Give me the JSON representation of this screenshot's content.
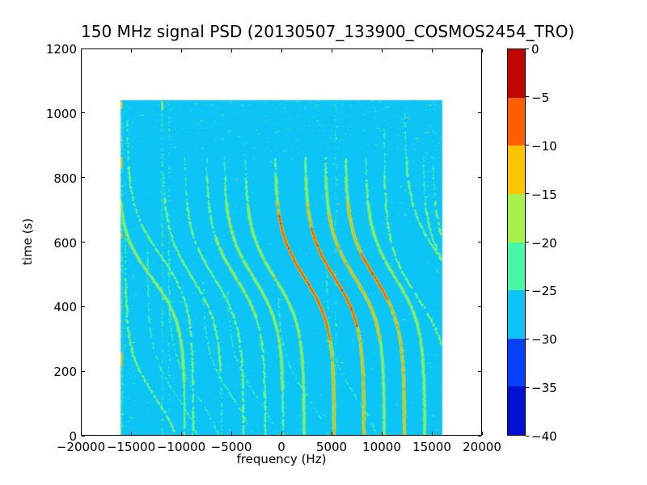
{
  "chart_data": {
    "type": "heatmap",
    "title": "150 MHz signal PSD (20130507_133900_COSMOS2454_TRO)",
    "xlabel": "frequency (Hz)",
    "ylabel": "time (s)",
    "xlim": [
      -20000,
      20000
    ],
    "ylim": [
      0,
      1200
    ],
    "x_ticks": [
      -20000,
      -15000,
      -10000,
      -5000,
      0,
      5000,
      10000,
      15000,
      20000
    ],
    "x_tick_labels": [
      "−20000",
      "−15000",
      "−10000",
      "−5000",
      "0",
      "5000",
      "10000",
      "15000",
      "20000"
    ],
    "y_ticks": [
      0,
      200,
      400,
      600,
      800,
      1000,
      1200
    ],
    "y_tick_labels": [
      "0",
      "200",
      "400",
      "600",
      "800",
      "1000",
      "1200"
    ],
    "grid": false,
    "legend": "none",
    "colorbar": {
      "ticks": [
        0,
        -5,
        -10,
        -15,
        -20,
        -25,
        -30,
        -35,
        -40
      ],
      "tick_labels": [
        "0",
        "−5",
        "−10",
        "−15",
        "−20",
        "−25",
        "−30",
        "−35",
        "−40"
      ],
      "segment_colors_top_to_bottom": [
        "#c00400",
        "#ff5f00",
        "#ffc400",
        "#a8f14d",
        "#49f7a4",
        "#0cc4f5",
        "#0540fb",
        "#0410cf"
      ]
    },
    "background_level_color": "#0cc4f5",
    "data_extent": {
      "freq_min": -16040,
      "freq_max": 16040,
      "time_min": 0,
      "time_max": 1040
    },
    "palette": {
      "red": "#cc0f00",
      "orange": "#ff5f00",
      "gold": "#ffc400",
      "green_yellow": "#a8f14d",
      "aqua": "#49f7a4",
      "dim_cyan": "#2bb8e8"
    },
    "doppler_traces": [
      {
        "f_mid": -8900,
        "t_infl": 490,
        "tau": 150,
        "swing": 2950,
        "strength": 0.42,
        "t_max": 880
      },
      {
        "f_mid": -6727,
        "t_infl": 490,
        "tau": 150,
        "swing": 2950,
        "strength": 0.5,
        "t_max": 862
      },
      {
        "f_mid": -4550,
        "t_infl": 490,
        "tau": 150,
        "swing": 2950,
        "strength": 0.55,
        "t_max": 862
      },
      {
        "f_mid": -2776,
        "t_infl": 490,
        "tau": 150,
        "swing": 2950,
        "strength": 0.62,
        "t_max": 862
      },
      {
        "f_mid": -679,
        "t_infl": 490,
        "tau": 150,
        "swing": 2950,
        "strength": 0.72,
        "t_max": 862
      },
      {
        "f_mid": 2305,
        "t_infl": 490,
        "tau": 150,
        "swing": 2950,
        "strength": 1.0,
        "t_max": 862
      },
      {
        "f_mid": 5289,
        "t_infl": 490,
        "tau": 150,
        "swing": 2950,
        "strength": 0.97,
        "t_max": 862
      },
      {
        "f_mid": 7305,
        "t_infl": 490,
        "tau": 150,
        "swing": 2950,
        "strength": 0.8,
        "t_max": 862
      },
      {
        "f_mid": 9321,
        "t_infl": 490,
        "tau": 150,
        "swing": 2950,
        "strength": 0.92,
        "t_max": 862
      },
      {
        "f_mid": 11337,
        "t_infl": 490,
        "tau": 150,
        "swing": 2950,
        "strength": 0.7,
        "t_max": 862
      },
      {
        "f_mid": 17063,
        "t_infl": 490,
        "tau": 150,
        "swing": 2950,
        "strength": 0.5,
        "t_max": 862
      },
      {
        "f_mid": 18031,
        "t_infl": 490,
        "tau": 150,
        "swing": 2950,
        "strength": 0.45,
        "t_max": 862
      },
      {
        "f_mid": -12950,
        "t_infl": 490,
        "tau": 140,
        "swing": 3300,
        "strength": 0.62,
        "t_max": 1035
      },
      {
        "f_mid": -12100,
        "t_infl": 560,
        "tau": 150,
        "swing": 3300,
        "strength": 0.5,
        "t_max": 980
      },
      {
        "f_mid": 15600,
        "t_infl": 560,
        "tau": 160,
        "swing": 3300,
        "strength": 0.5,
        "t_max": 1000
      },
      {
        "f_mid": 13550,
        "t_infl": 430,
        "tau": 160,
        "swing": 3300,
        "strength": 0.45,
        "t_max": 950
      },
      {
        "f_mid": -12600,
        "t_infl": 120,
        "tau": 140,
        "swing": 2950,
        "strength": 0.5,
        "t_max": 620
      },
      {
        "f_mid": -10400,
        "t_infl": 120,
        "tau": 140,
        "swing": 2950,
        "strength": 0.35,
        "t_max": 600
      },
      {
        "f_mid": -8300,
        "t_infl": 120,
        "tau": 140,
        "swing": 2950,
        "strength": 0.33,
        "t_max": 580
      },
      {
        "f_mid": -4900,
        "t_infl": 120,
        "tau": 140,
        "swing": 2950,
        "strength": 0.33,
        "t_max": 480
      },
      {
        "f_mid": -2450,
        "t_infl": 120,
        "tau": 140,
        "swing": 2950,
        "strength": 0.3,
        "t_max": 450
      },
      {
        "f_mid": 2600,
        "t_infl": 120,
        "tau": 140,
        "swing": 2950,
        "strength": 0.3,
        "t_max": 430
      },
      {
        "f_mid": 7450,
        "t_infl": 120,
        "tau": 140,
        "swing": 2950,
        "strength": 0.32,
        "t_max": 520
      }
    ],
    "interference_lines": [
      {
        "freq": -15950,
        "density": 0.8,
        "bright_color": "#ffc400",
        "bright_segments": [
          {
            "t": 828,
            "len": 36
          },
          {
            "t": 612,
            "len": 16
          },
          {
            "t": 214,
            "len": 44
          },
          {
            "t": 1014,
            "len": 22
          }
        ]
      },
      {
        "freq": -11900,
        "density": 0.45,
        "bright_color": "#a8f14d",
        "bright_segments": [
          {
            "t": 1008,
            "len": 28
          }
        ]
      },
      {
        "freq": -11200,
        "density": 0.22,
        "bright_color": "#a8f14d",
        "bright_segments": []
      },
      {
        "freq": 5400,
        "density": 0.3,
        "bright_color": "#a8f14d",
        "bright_segments": []
      }
    ],
    "noise": {
      "seed": 42,
      "speckle_count": 1500,
      "top_band_time": [
        1022,
        1040
      ],
      "horizontal_rows": [
        {
          "t": 335,
          "f0": -16040,
          "f1": -13600
        }
      ]
    }
  }
}
